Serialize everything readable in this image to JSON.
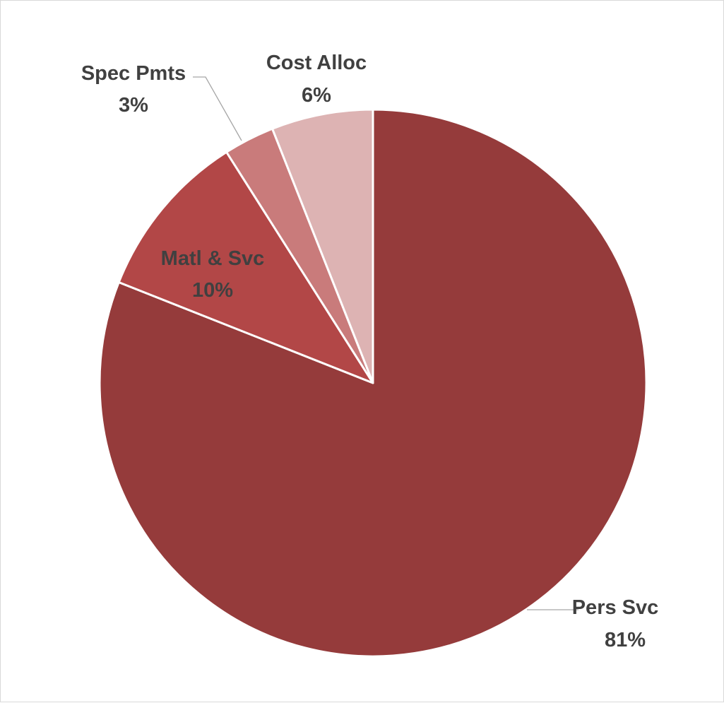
{
  "chart_data": {
    "type": "pie",
    "title": "",
    "start_angle_deg": 0,
    "direction": "clockwise",
    "slices": [
      {
        "label": "Pers Svc",
        "value": 81,
        "percent_label": "81%",
        "color": "#953b3b"
      },
      {
        "label": "Matl & Svc",
        "value": 10,
        "percent_label": "10%",
        "color": "#b24747"
      },
      {
        "label": "Spec Pmts",
        "value": 3,
        "percent_label": "3%",
        "color": "#c97b7b"
      },
      {
        "label": "Cost Alloc",
        "value": 6,
        "percent_label": "6%",
        "color": "#ddb3b3"
      }
    ],
    "slice_border_color": "#ffffff",
    "legend": "none",
    "data_labels": "category name and percentage"
  }
}
